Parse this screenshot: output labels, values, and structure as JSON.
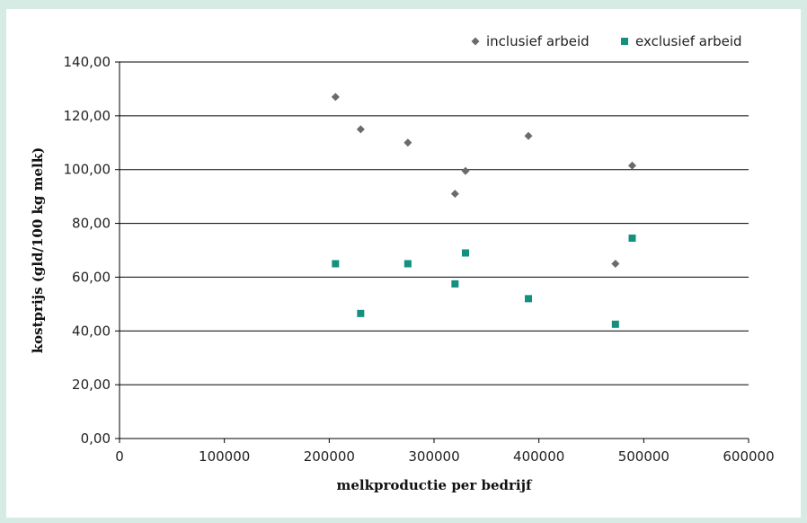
{
  "chart_data": {
    "type": "scatter",
    "xlabel": "melkproductie per bedrijf",
    "ylabel": "kostprijs (gld/100 kg melk)",
    "xlim": [
      0,
      600000
    ],
    "ylim": [
      0,
      140
    ],
    "x_ticks": [
      "0",
      "100000",
      "200000",
      "300000",
      "400000",
      "500000",
      "600000"
    ],
    "y_ticks": [
      "0,00",
      "20,00",
      "40,00",
      "60,00",
      "80,00",
      "100,00",
      "120,00",
      "140,00"
    ],
    "grid": "horizontal",
    "legend_position": "top-right",
    "series": [
      {
        "name": "inclusief arbeid",
        "marker": "diamond",
        "color": "#6b6b6b",
        "points": [
          {
            "x": 206000,
            "y": 127
          },
          {
            "x": 230000,
            "y": 115
          },
          {
            "x": 275000,
            "y": 110
          },
          {
            "x": 320000,
            "y": 91
          },
          {
            "x": 330000,
            "y": 99.5
          },
          {
            "x": 390000,
            "y": 112.5
          },
          {
            "x": 473000,
            "y": 65
          },
          {
            "x": 489000,
            "y": 101.5
          }
        ]
      },
      {
        "name": "exclusief arbeid",
        "marker": "square",
        "color": "#13907e",
        "points": [
          {
            "x": 206000,
            "y": 65
          },
          {
            "x": 230000,
            "y": 46.5
          },
          {
            "x": 275000,
            "y": 65
          },
          {
            "x": 320000,
            "y": 57.5
          },
          {
            "x": 330000,
            "y": 69
          },
          {
            "x": 390000,
            "y": 52
          },
          {
            "x": 473000,
            "y": 42.5
          },
          {
            "x": 489000,
            "y": 74.5
          }
        ]
      }
    ]
  }
}
